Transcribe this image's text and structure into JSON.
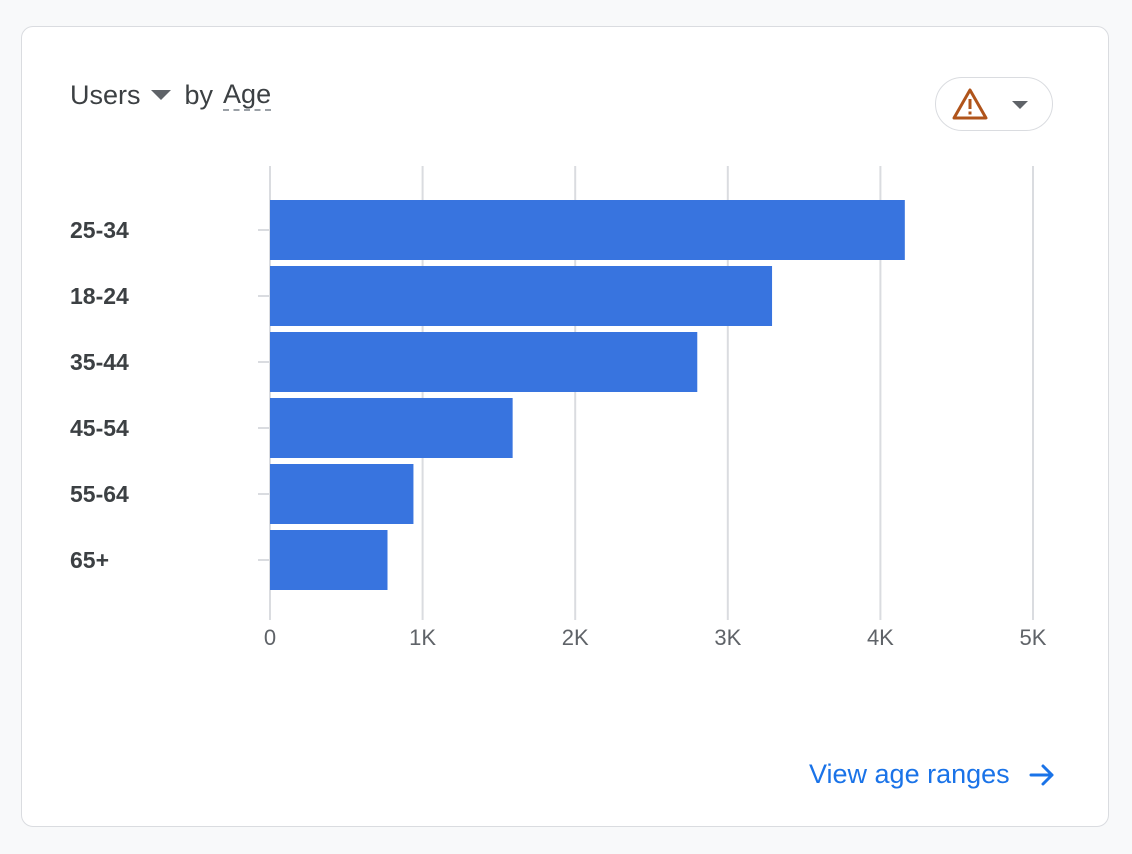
{
  "header": {
    "metric_label": "Users",
    "by_label": "by",
    "dimension_label": "Age"
  },
  "warning_icon": "warning-triangle-icon",
  "footer": {
    "link_label": "View age ranges",
    "link_icon": "arrow-right-icon"
  },
  "colors": {
    "bar": "#3874df",
    "accent": "#1a73e8",
    "warning": "#b0541b",
    "gridline": "#dadce0"
  },
  "chart_data": {
    "type": "bar",
    "orientation": "horizontal",
    "categories": [
      "25-34",
      "18-24",
      "35-44",
      "45-54",
      "55-64",
      "65+"
    ],
    "series": [
      {
        "values": [
          4160,
          3290,
          2800,
          1590,
          940,
          770
        ]
      }
    ],
    "xlim": [
      0,
      5000
    ],
    "x_ticks": [
      0,
      1000,
      2000,
      3000,
      4000,
      5000
    ],
    "x_tick_labels": [
      "0",
      "1K",
      "2K",
      "3K",
      "4K",
      "5K"
    ],
    "grid": true,
    "legend": "none"
  }
}
